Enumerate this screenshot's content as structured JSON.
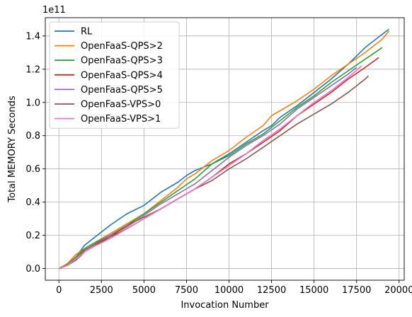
{
  "chart_data": {
    "type": "line",
    "title": "",
    "xlabel": "Invocation Number",
    "ylabel": "Total MEMORY Seconds",
    "y_offset_label": "1e11",
    "xlim": [
      -800,
      20300
    ],
    "ylim": [
      -0.07,
      1.51
    ],
    "x_ticks": [
      0,
      2500,
      5000,
      7500,
      10000,
      12500,
      15000,
      17500,
      20000
    ],
    "x_tick_labels": [
      "0",
      "2500",
      "5000",
      "7500",
      "10000",
      "12500",
      "15000",
      "17500",
      "20000"
    ],
    "y_ticks": [
      0.0,
      0.2,
      0.4,
      0.6,
      0.8,
      1.0,
      1.2,
      1.4
    ],
    "y_tick_labels": [
      "0.0",
      "0.2",
      "0.4",
      "0.6",
      "0.8",
      "1.0",
      "1.2",
      "1.4"
    ],
    "grid": true,
    "legend_position": "upper-left",
    "series": [
      {
        "name": "RL",
        "color": "#1f77b4",
        "points": [
          [
            0,
            0
          ],
          [
            500,
            0.025
          ],
          [
            1000,
            0.07
          ],
          [
            1500,
            0.14
          ],
          [
            2000,
            0.18
          ],
          [
            3000,
            0.26
          ],
          [
            4000,
            0.33
          ],
          [
            5000,
            0.38
          ],
          [
            6000,
            0.46
          ],
          [
            7000,
            0.52
          ],
          [
            7500,
            0.56
          ],
          [
            8000,
            0.59
          ],
          [
            9000,
            0.63
          ],
          [
            10000,
            0.69
          ],
          [
            11000,
            0.76
          ],
          [
            12000,
            0.83
          ],
          [
            12500,
            0.86
          ],
          [
            13000,
            0.91
          ],
          [
            14000,
            0.98
          ],
          [
            15000,
            1.06
          ],
          [
            16000,
            1.14
          ],
          [
            17000,
            1.23
          ],
          [
            18000,
            1.33
          ],
          [
            19000,
            1.41
          ],
          [
            19400,
            1.44
          ]
        ]
      },
      {
        "name": "OpenFaaS-QPS>2",
        "color": "#ff7f0e",
        "points": [
          [
            0,
            0
          ],
          [
            500,
            0.03
          ],
          [
            1000,
            0.085
          ],
          [
            1500,
            0.12
          ],
          [
            2000,
            0.15
          ],
          [
            3000,
            0.21
          ],
          [
            4000,
            0.27
          ],
          [
            5000,
            0.33
          ],
          [
            6000,
            0.41
          ],
          [
            7000,
            0.49
          ],
          [
            7500,
            0.54
          ],
          [
            8000,
            0.57
          ],
          [
            9000,
            0.65
          ],
          [
            10000,
            0.71
          ],
          [
            11000,
            0.79
          ],
          [
            12000,
            0.86
          ],
          [
            12500,
            0.92
          ],
          [
            13000,
            0.95
          ],
          [
            14000,
            1.01
          ],
          [
            15000,
            1.08
          ],
          [
            16000,
            1.16
          ],
          [
            17000,
            1.23
          ],
          [
            18000,
            1.3
          ],
          [
            19000,
            1.38
          ],
          [
            19400,
            1.43
          ]
        ]
      },
      {
        "name": "OpenFaaS-QPS>3",
        "color": "#2ca02c",
        "points": [
          [
            0,
            0
          ],
          [
            500,
            0.025
          ],
          [
            1000,
            0.07
          ],
          [
            1500,
            0.12
          ],
          [
            2000,
            0.15
          ],
          [
            3000,
            0.2
          ],
          [
            4000,
            0.26
          ],
          [
            5000,
            0.33
          ],
          [
            6000,
            0.4
          ],
          [
            7000,
            0.47
          ],
          [
            8000,
            0.54
          ],
          [
            9000,
            0.63
          ],
          [
            10000,
            0.68
          ],
          [
            11000,
            0.75
          ],
          [
            12000,
            0.81
          ],
          [
            13000,
            0.89
          ],
          [
            14000,
            0.97
          ],
          [
            15000,
            1.04
          ],
          [
            16000,
            1.12
          ],
          [
            17000,
            1.19
          ],
          [
            18000,
            1.26
          ],
          [
            19000,
            1.33
          ]
        ]
      },
      {
        "name": "OpenFaaS-QPS>4",
        "color": "#d62728",
        "points": [
          [
            0,
            0
          ],
          [
            500,
            0.02
          ],
          [
            1000,
            0.05
          ],
          [
            1500,
            0.1
          ],
          [
            2000,
            0.13
          ],
          [
            3000,
            0.19
          ],
          [
            4000,
            0.24
          ],
          [
            5000,
            0.3
          ],
          [
            6000,
            0.36
          ],
          [
            7000,
            0.42
          ],
          [
            8000,
            0.48
          ],
          [
            9000,
            0.55
          ],
          [
            10000,
            0.63
          ],
          [
            11000,
            0.69
          ],
          [
            12000,
            0.76
          ],
          [
            13000,
            0.83
          ],
          [
            14000,
            0.92
          ],
          [
            15000,
            0.99
          ],
          [
            16000,
            1.06
          ],
          [
            17000,
            1.14
          ],
          [
            18000,
            1.21
          ],
          [
            18800,
            1.27
          ]
        ]
      },
      {
        "name": "OpenFaaS-QPS>5",
        "color": "#9467bd",
        "points": [
          [
            0,
            0
          ],
          [
            500,
            0.02
          ],
          [
            1000,
            0.05
          ],
          [
            1500,
            0.11
          ],
          [
            2000,
            0.14
          ],
          [
            3000,
            0.2
          ],
          [
            4000,
            0.25
          ],
          [
            5000,
            0.32
          ],
          [
            6000,
            0.39
          ],
          [
            7000,
            0.45
          ],
          [
            8000,
            0.51
          ],
          [
            9000,
            0.59
          ],
          [
            10000,
            0.67
          ],
          [
            11000,
            0.74
          ],
          [
            12000,
            0.8
          ],
          [
            13000,
            0.87
          ],
          [
            14000,
            0.96
          ],
          [
            15000,
            1.03
          ],
          [
            16000,
            1.1
          ],
          [
            17000,
            1.17
          ],
          [
            17500,
            1.21
          ]
        ]
      },
      {
        "name": "OpenFaaS-VPS>0",
        "color": "#8c564b",
        "points": [
          [
            0,
            0
          ],
          [
            500,
            0.02
          ],
          [
            1000,
            0.06
          ],
          [
            1500,
            0.11
          ],
          [
            2000,
            0.14
          ],
          [
            3000,
            0.19
          ],
          [
            4000,
            0.26
          ],
          [
            5000,
            0.31
          ],
          [
            6000,
            0.36
          ],
          [
            7000,
            0.42
          ],
          [
            8000,
            0.48
          ],
          [
            9000,
            0.53
          ],
          [
            10000,
            0.6
          ],
          [
            11000,
            0.66
          ],
          [
            12000,
            0.73
          ],
          [
            13000,
            0.8
          ],
          [
            14000,
            0.87
          ],
          [
            15000,
            0.93
          ],
          [
            16000,
            0.99
          ],
          [
            17000,
            1.06
          ],
          [
            18000,
            1.14
          ],
          [
            18200,
            1.16
          ]
        ]
      },
      {
        "name": "OpenFaaS-VPS>1",
        "color": "#e377c2",
        "points": [
          [
            0,
            0
          ],
          [
            500,
            0.02
          ],
          [
            1000,
            0.06
          ],
          [
            1500,
            0.1
          ],
          [
            2000,
            0.13
          ],
          [
            3000,
            0.18
          ],
          [
            4000,
            0.24
          ],
          [
            5000,
            0.3
          ],
          [
            6000,
            0.36
          ],
          [
            7000,
            0.42
          ],
          [
            8000,
            0.48
          ],
          [
            9000,
            0.55
          ],
          [
            10000,
            0.62
          ],
          [
            11000,
            0.69
          ],
          [
            12000,
            0.77
          ],
          [
            13000,
            0.84
          ],
          [
            14000,
            0.92
          ],
          [
            15000,
            1.0
          ],
          [
            16000,
            1.07
          ],
          [
            17000,
            1.15
          ],
          [
            17800,
            1.22
          ]
        ]
      }
    ]
  }
}
